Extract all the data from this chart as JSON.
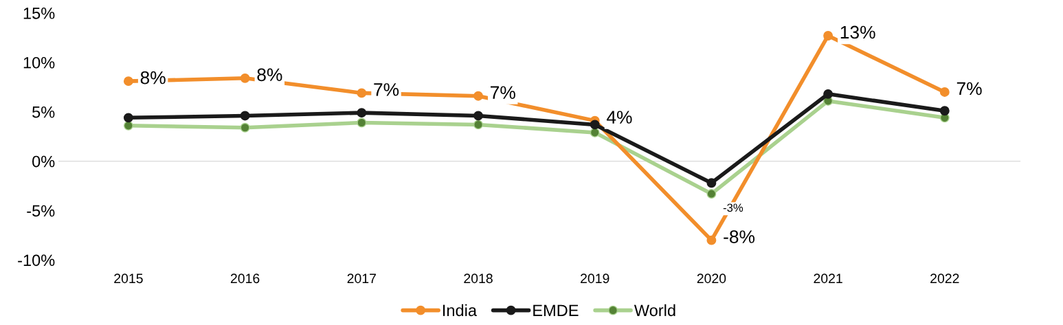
{
  "chart_data": {
    "type": "line",
    "categories": [
      "2015",
      "2016",
      "2017",
      "2018",
      "2019",
      "2020",
      "2021",
      "2022"
    ],
    "series": [
      {
        "name": "India",
        "color": "#f28e2b",
        "values": [
          8.1,
          8.4,
          6.9,
          6.6,
          4.1,
          -8.0,
          12.7,
          7.0
        ],
        "value_labels": [
          "8%",
          "8%",
          "7%",
          "7%",
          "4%",
          "-8%",
          "13%",
          "7%"
        ]
      },
      {
        "name": "EMDE",
        "color": "#1a1a1a",
        "values": [
          4.4,
          4.6,
          4.9,
          4.6,
          3.7,
          -2.2,
          6.8,
          5.1
        ]
      },
      {
        "name": "World",
        "color": "#a9d18e",
        "values": [
          3.6,
          3.4,
          3.9,
          3.7,
          2.9,
          -3.3,
          6.1,
          4.4
        ],
        "value_labels": [
          null,
          null,
          null,
          null,
          null,
          "-3%",
          null,
          null
        ]
      }
    ],
    "ylim": [
      -10,
      15
    ],
    "yticks": [
      {
        "value": -10,
        "label": "-10%"
      },
      {
        "value": -5,
        "label": "-5%"
      },
      {
        "value": 0,
        "label": "0%"
      },
      {
        "value": 5,
        "label": "5%"
      },
      {
        "value": 10,
        "label": "10%"
      },
      {
        "value": 15,
        "label": "15%"
      }
    ],
    "ref_lines": [
      {
        "axis": "y",
        "value": 0,
        "color": "#d9d9d9"
      }
    ],
    "grid": false,
    "legend": "bottom",
    "marker": "circle",
    "line_style": "solid"
  }
}
